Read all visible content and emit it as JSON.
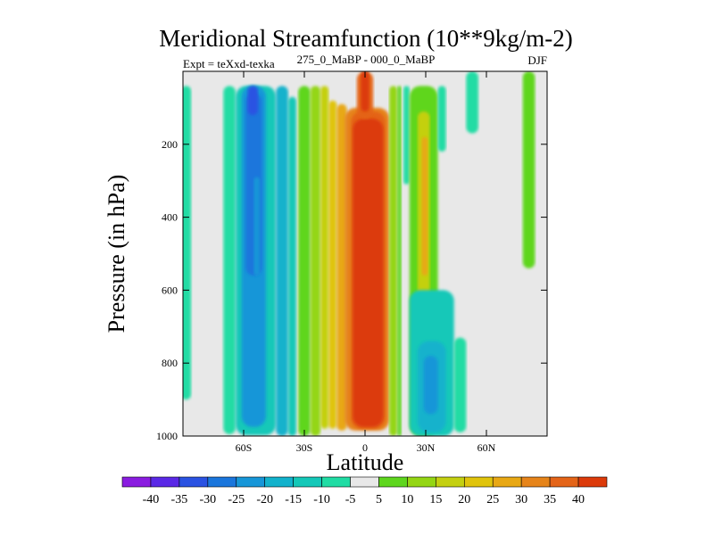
{
  "chart_data": {
    "type": "heatmap",
    "title": "Meridional Streamfunction (10**9kg/m-2)",
    "subtitle_left": "Expt = teXxd-texka",
    "subtitle_center": "275_0_MaBP - 000_0_MaBP",
    "subtitle_right": "DJF",
    "xlabel": "Latitude",
    "ylabel": "Pressure (in hPa)",
    "xlim": [
      -90,
      90
    ],
    "ylim": [
      1000,
      0
    ],
    "x_ticks": [
      {
        "value": -60,
        "label": "60S"
      },
      {
        "value": -30,
        "label": "30S"
      },
      {
        "value": 0,
        "label": "0"
      },
      {
        "value": 30,
        "label": "30N"
      },
      {
        "value": 60,
        "label": "60N"
      }
    ],
    "y_ticks": [
      {
        "value": 200,
        "label": "200"
      },
      {
        "value": 400,
        "label": "400"
      },
      {
        "value": 600,
        "label": "600"
      },
      {
        "value": 800,
        "label": "800"
      },
      {
        "value": 1000,
        "label": "1000"
      }
    ],
    "colorbar": {
      "boundaries": [
        "-40",
        "-35",
        "-30",
        "-25",
        "-20",
        "-15",
        "-10",
        "-5",
        "5",
        "10",
        "15",
        "20",
        "25",
        "30",
        "35",
        "40"
      ],
      "colors": [
        "#8a1ce0",
        "#5a28e6",
        "#2a52e2",
        "#1a76dc",
        "#1696d8",
        "#12b2cc",
        "#14c8b8",
        "#20dca4",
        "#e8e8e8",
        "#5ed61e",
        "#94d614",
        "#c4d010",
        "#e0c40c",
        "#e8a814",
        "#e6841a",
        "#e46418",
        "#dc3a0a"
      ]
    },
    "regions": [
      {
        "lat": [
          -91,
          -86
        ],
        "p": [
          40,
          900
        ],
        "level": 7
      },
      {
        "lat": [
          -70,
          -64
        ],
        "p": [
          40,
          995
        ],
        "level": 7
      },
      {
        "lat": [
          -64,
          -44
        ],
        "p": [
          40,
          998
        ],
        "level": 6
      },
      {
        "lat": [
          -61,
          -49
        ],
        "p": [
          40,
          975
        ],
        "level": 4
      },
      {
        "lat": [
          -59,
          -51
        ],
        "p": [
          60,
          560
        ],
        "level": 3
      },
      {
        "lat": [
          -55,
          -52
        ],
        "p": [
          290,
          560
        ],
        "level": 4
      },
      {
        "lat": [
          -58,
          -53
        ],
        "p": [
          40,
          120
        ],
        "level": 2
      },
      {
        "lat": [
          -44,
          -38
        ],
        "p": [
          40,
          1000
        ],
        "level": 5
      },
      {
        "lat": [
          -38,
          -34
        ],
        "p": [
          70,
          1000
        ],
        "level": 6
      },
      {
        "lat": [
          -33,
          -27
        ],
        "p": [
          40,
          1000
        ],
        "level": 9
      },
      {
        "lat": [
          -27,
          -22
        ],
        "p": [
          40,
          1000
        ],
        "level": 10
      },
      {
        "lat": [
          -22,
          -18
        ],
        "p": [
          40,
          980
        ],
        "level": 11
      },
      {
        "lat": [
          -18,
          -14
        ],
        "p": [
          80,
          980
        ],
        "level": 12
      },
      {
        "lat": [
          -14,
          -9
        ],
        "p": [
          90,
          985
        ],
        "level": 13
      },
      {
        "lat": [
          -10,
          12
        ],
        "p": [
          100,
          985
        ],
        "level": 14
      },
      {
        "lat": [
          -7,
          10
        ],
        "p": [
          110,
          980
        ],
        "level": 15
      },
      {
        "lat": [
          -6,
          9
        ],
        "p": [
          130,
          975
        ],
        "level": 16
      },
      {
        "lat": [
          -4,
          4
        ],
        "p": [
          0,
          130
        ],
        "level": 15
      },
      {
        "lat": [
          -2,
          2
        ],
        "p": [
          0,
          110
        ],
        "level": 16
      },
      {
        "lat": [
          12,
          16
        ],
        "p": [
          40,
          1000
        ],
        "level": 10
      },
      {
        "lat": [
          16,
          18
        ],
        "p": [
          40,
          1000
        ],
        "level": 9
      },
      {
        "lat": [
          19,
          22
        ],
        "p": [
          40,
          310
        ],
        "level": 7
      },
      {
        "lat": [
          22,
          36
        ],
        "p": [
          40,
          1000
        ],
        "level": 9
      },
      {
        "lat": [
          26,
          32
        ],
        "p": [
          110,
          850
        ],
        "level": 11
      },
      {
        "lat": [
          28,
          31
        ],
        "p": [
          180,
          560
        ],
        "level": 13
      },
      {
        "lat": [
          36,
          40
        ],
        "p": [
          40,
          220
        ],
        "level": 7
      },
      {
        "lat": [
          22,
          44
        ],
        "p": [
          600,
          1000
        ],
        "level": 6
      },
      {
        "lat": [
          26,
          40
        ],
        "p": [
          740,
          990
        ],
        "level": 5
      },
      {
        "lat": [
          29,
          36
        ],
        "p": [
          780,
          940
        ],
        "level": 4
      },
      {
        "lat": [
          44,
          50
        ],
        "p": [
          730,
          990
        ],
        "level": 7
      },
      {
        "lat": [
          50,
          56
        ],
        "p": [
          0,
          170
        ],
        "level": 7
      },
      {
        "lat": [
          78,
          84
        ],
        "p": [
          0,
          540
        ],
        "level": 9
      }
    ]
  }
}
